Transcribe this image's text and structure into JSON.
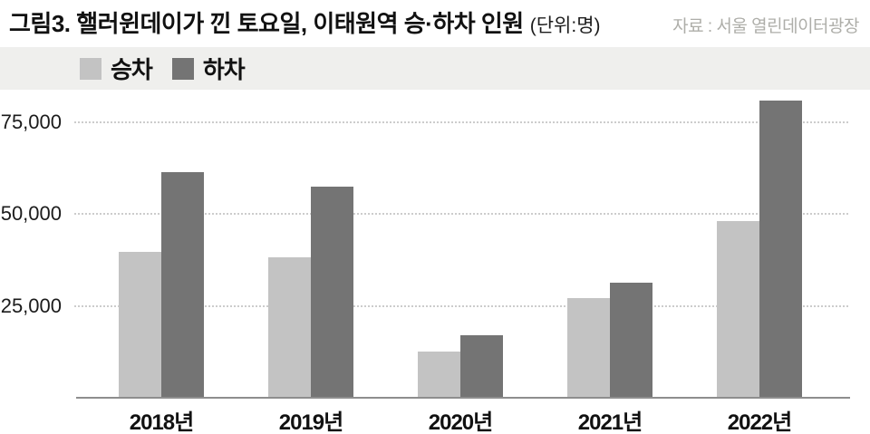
{
  "header": {
    "title": "그림3. 핼러윈데이가 낀 토요일, 이태원역 승·하차 인원",
    "unit_note": "(단위:명)",
    "source": "자료 : 서울 열린데이터광장"
  },
  "legend": {
    "items": [
      {
        "key": "boarding",
        "label": "승차",
        "color": "#c3c3c3"
      },
      {
        "key": "alighting",
        "label": "하차",
        "color": "#747474"
      }
    ]
  },
  "chart_data": {
    "type": "bar",
    "title": "핼러윈데이가 낀 토요일, 이태원역 승·하차 인원",
    "unit": "명",
    "categories": [
      "2018년",
      "2019년",
      "2020년",
      "2021년",
      "2022년"
    ],
    "series": [
      {
        "key": "boarding",
        "name": "승차",
        "color": "#c3c3c3",
        "values": [
          39800,
          38200,
          12700,
          27200,
          48000
        ]
      },
      {
        "key": "alighting",
        "name": "하차",
        "color": "#747474",
        "values": [
          61400,
          57500,
          16900,
          31300,
          80800
        ]
      }
    ],
    "xlabel": "",
    "ylabel": "",
    "ylim": [
      0,
      83500
    ],
    "yticks": [
      25000,
      50000,
      75000
    ],
    "ytick_labels": [
      "25,000",
      "50,000",
      "75,000"
    ],
    "grid": "horizontal-dotted",
    "legend_position": "top-left-band"
  },
  "colors": {
    "background": "#ffffff",
    "legend_band": "#efefed",
    "gridline": "#cccccc",
    "axis_line": "#8e8e8e",
    "title_text": "#111111",
    "source_text": "#aeaea9"
  }
}
